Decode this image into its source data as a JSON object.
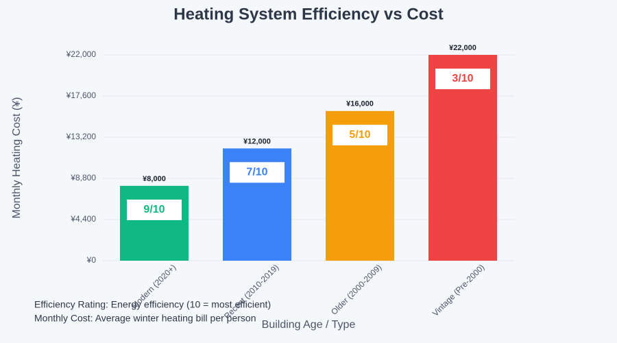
{
  "chart_data": {
    "type": "bar",
    "title": "Heating System Efficiency vs Cost",
    "x_label": "Building Age / Type",
    "y_label": "Monthly Heating Cost (¥)",
    "categories": [
      "Modern (2020+)",
      "Recent (2010-2019)",
      "Older (2000-2009)",
      "Vintage (Pre-2000)"
    ],
    "values": [
      8000,
      12000,
      16000,
      22000
    ],
    "value_labels": [
      "¥8,000",
      "¥12,000",
      "¥16,000",
      "¥22,000"
    ],
    "colors": [
      "#10b981",
      "#3b82f6",
      "#f59e0b",
      "#ef4444"
    ],
    "efficiency_labels": [
      "9/10",
      "7/10",
      "5/10",
      "3/10"
    ],
    "ylim": [
      0,
      22000
    ],
    "yticks": [
      {
        "value": 0,
        "label": "¥0"
      },
      {
        "value": 4400,
        "label": "¥4,400"
      },
      {
        "value": 8800,
        "label": "¥8,800"
      },
      {
        "value": 13200,
        "label": "¥13,200"
      },
      {
        "value": 17600,
        "label": "¥17,600"
      },
      {
        "value": 22000,
        "label": "¥22,000"
      }
    ],
    "grid": true,
    "notes": [
      "Efficiency Rating: Energy efficiency (10 = most efficient)",
      "Monthly Cost: Average winter heating bill per person"
    ]
  }
}
